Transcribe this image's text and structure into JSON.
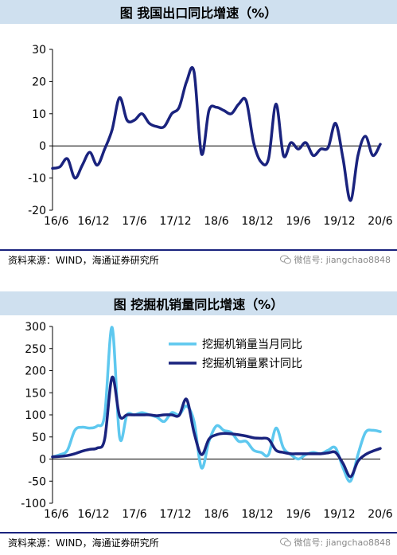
{
  "chart_data": [
    {
      "type": "line",
      "title": "图  我国出口同比增速（%）",
      "xlabel": "",
      "ylabel": "",
      "ylim": [
        -20,
        30
      ],
      "yticks": [
        30,
        20,
        10,
        0,
        -10,
        -20
      ],
      "xticks": [
        "16/6",
        "16/12",
        "17/6",
        "17/12",
        "18/6",
        "18/12",
        "19/6",
        "19/12",
        "20/6"
      ],
      "grid": false,
      "legend": "none",
      "series": [
        {
          "color": "#1a237e",
          "points": [
            {
              "x": 0,
              "y": -7
            },
            {
              "x": 1,
              "y": -6.5
            },
            {
              "x": 2,
              "y": -4
            },
            {
              "x": 3,
              "y": -10
            },
            {
              "x": 4,
              "y": -6
            },
            {
              "x": 5,
              "y": -2
            },
            {
              "x": 6,
              "y": -6
            },
            {
              "x": 7,
              "y": -1
            },
            {
              "x": 8,
              "y": 5
            },
            {
              "x": 9,
              "y": 15
            },
            {
              "x": 10,
              "y": 8
            },
            {
              "x": 11,
              "y": 8
            },
            {
              "x": 12,
              "y": 10
            },
            {
              "x": 13,
              "y": 7
            },
            {
              "x": 14,
              "y": 6
            },
            {
              "x": 15,
              "y": 6
            },
            {
              "x": 16,
              "y": 10
            },
            {
              "x": 17,
              "y": 12
            },
            {
              "x": 18,
              "y": 20
            },
            {
              "x": 19,
              "y": 23
            },
            {
              "x": 20,
              "y": -2.5
            },
            {
              "x": 21,
              "y": 11
            },
            {
              "x": 22,
              "y": 12
            },
            {
              "x": 23,
              "y": 11
            },
            {
              "x": 24,
              "y": 10
            },
            {
              "x": 25,
              "y": 13
            },
            {
              "x": 26,
              "y": 14
            },
            {
              "x": 27,
              "y": 1
            },
            {
              "x": 28,
              "y": -5
            },
            {
              "x": 29,
              "y": -4
            },
            {
              "x": 30,
              "y": 13
            },
            {
              "x": 31,
              "y": -3
            },
            {
              "x": 32,
              "y": 1
            },
            {
              "x": 33,
              "y": -1
            },
            {
              "x": 34,
              "y": 1
            },
            {
              "x": 35,
              "y": -3
            },
            {
              "x": 36,
              "y": -1
            },
            {
              "x": 37,
              "y": -0.5
            },
            {
              "x": 38,
              "y": 7
            },
            {
              "x": 39,
              "y": -4
            },
            {
              "x": 40,
              "y": -17
            },
            {
              "x": 41,
              "y": -3
            },
            {
              "x": 42,
              "y": 3
            },
            {
              "x": 43,
              "y": -3
            },
            {
              "x": 44,
              "y": 0.5
            }
          ]
        }
      ]
    },
    {
      "type": "line",
      "title": "图  挖掘机销量同比增速（%）",
      "xlabel": "",
      "ylabel": "",
      "ylim": [
        -100,
        300
      ],
      "yticks": [
        300,
        250,
        200,
        150,
        100,
        50,
        0,
        -50,
        -100
      ],
      "xticks": [
        "16/6",
        "16/12",
        "17/6",
        "17/12",
        "18/6",
        "18/12",
        "19/6",
        "19/12",
        "20/6"
      ],
      "grid": false,
      "legend": "top-right",
      "series": [
        {
          "name": "挖掘机销量当月同比",
          "color": "#5ec8ef",
          "points": [
            {
              "x": 0,
              "y": 5
            },
            {
              "x": 1,
              "y": 10
            },
            {
              "x": 2,
              "y": 20
            },
            {
              "x": 3,
              "y": 65
            },
            {
              "x": 4,
              "y": 72
            },
            {
              "x": 5,
              "y": 70
            },
            {
              "x": 6,
              "y": 75
            },
            {
              "x": 7,
              "y": 100
            },
            {
              "x": 8,
              "y": 298
            },
            {
              "x": 9,
              "y": 50
            },
            {
              "x": 10,
              "y": 100
            },
            {
              "x": 11,
              "y": 100
            },
            {
              "x": 12,
              "y": 105
            },
            {
              "x": 13,
              "y": 100
            },
            {
              "x": 14,
              "y": 95
            },
            {
              "x": 15,
              "y": 85
            },
            {
              "x": 16,
              "y": 105
            },
            {
              "x": 17,
              "y": 100
            },
            {
              "x": 18,
              "y": 120
            },
            {
              "x": 19,
              "y": 85
            },
            {
              "x": 20,
              "y": -20
            },
            {
              "x": 21,
              "y": 40
            },
            {
              "x": 22,
              "y": 75
            },
            {
              "x": 23,
              "y": 65
            },
            {
              "x": 24,
              "y": 60
            },
            {
              "x": 25,
              "y": 40
            },
            {
              "x": 26,
              "y": 40
            },
            {
              "x": 27,
              "y": 20
            },
            {
              "x": 28,
              "y": 15
            },
            {
              "x": 29,
              "y": 10
            },
            {
              "x": 30,
              "y": 70
            },
            {
              "x": 31,
              "y": 25
            },
            {
              "x": 32,
              "y": 10
            },
            {
              "x": 33,
              "y": 0
            },
            {
              "x": 34,
              "y": 10
            },
            {
              "x": 35,
              "y": 15
            },
            {
              "x": 36,
              "y": 12
            },
            {
              "x": 37,
              "y": 20
            },
            {
              "x": 38,
              "y": 25
            },
            {
              "x": 39,
              "y": -20
            },
            {
              "x": 40,
              "y": -50
            },
            {
              "x": 41,
              "y": 10
            },
            {
              "x": 42,
              "y": 60
            },
            {
              "x": 43,
              "y": 65
            },
            {
              "x": 44,
              "y": 62
            }
          ]
        },
        {
          "name": "挖掘机销量累计同比",
          "color": "#1a237e",
          "points": [
            {
              "x": 0,
              "y": 5
            },
            {
              "x": 1,
              "y": 6
            },
            {
              "x": 2,
              "y": 8
            },
            {
              "x": 3,
              "y": 12
            },
            {
              "x": 4,
              "y": 18
            },
            {
              "x": 5,
              "y": 22
            },
            {
              "x": 6,
              "y": 25
            },
            {
              "x": 7,
              "y": 45
            },
            {
              "x": 8,
              "y": 185
            },
            {
              "x": 9,
              "y": 98
            },
            {
              "x": 10,
              "y": 100
            },
            {
              "x": 11,
              "y": 100
            },
            {
              "x": 12,
              "y": 100
            },
            {
              "x": 13,
              "y": 100
            },
            {
              "x": 14,
              "y": 98
            },
            {
              "x": 15,
              "y": 100
            },
            {
              "x": 16,
              "y": 100
            },
            {
              "x": 17,
              "y": 99
            },
            {
              "x": 18,
              "y": 135
            },
            {
              "x": 19,
              "y": 60
            },
            {
              "x": 20,
              "y": 10
            },
            {
              "x": 21,
              "y": 45
            },
            {
              "x": 22,
              "y": 55
            },
            {
              "x": 23,
              "y": 58
            },
            {
              "x": 24,
              "y": 57
            },
            {
              "x": 25,
              "y": 55
            },
            {
              "x": 26,
              "y": 52
            },
            {
              "x": 27,
              "y": 48
            },
            {
              "x": 28,
              "y": 47
            },
            {
              "x": 29,
              "y": 45
            },
            {
              "x": 30,
              "y": 20
            },
            {
              "x": 31,
              "y": 15
            },
            {
              "x": 32,
              "y": 12
            },
            {
              "x": 33,
              "y": 12
            },
            {
              "x": 34,
              "y": 12
            },
            {
              "x": 35,
              "y": 12
            },
            {
              "x": 36,
              "y": 12
            },
            {
              "x": 37,
              "y": 14
            },
            {
              "x": 38,
              "y": 15
            },
            {
              "x": 39,
              "y": -10
            },
            {
              "x": 40,
              "y": -40
            },
            {
              "x": 41,
              "y": -5
            },
            {
              "x": 42,
              "y": 10
            },
            {
              "x": 43,
              "y": 18
            },
            {
              "x": 44,
              "y": 24
            }
          ]
        }
      ]
    }
  ],
  "source_text": "资料来源：WIND，海通证券研究所",
  "watermark_text": "微信号: jiangchao8848",
  "colors": {
    "title_bg": "#cfe0ef",
    "rule": "#1a237e"
  }
}
